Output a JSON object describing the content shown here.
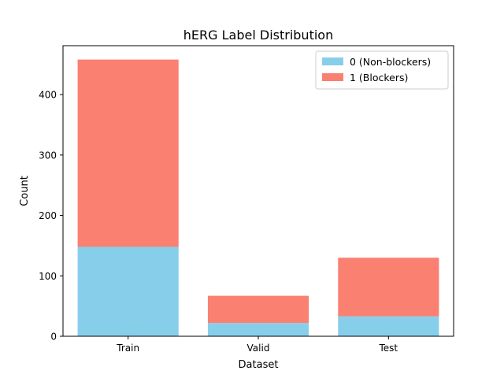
{
  "chart_data": {
    "type": "bar",
    "stacked": true,
    "title": "hERG Label Distribution",
    "xlabel": "Dataset",
    "ylabel": "Count",
    "categories": [
      "Train",
      "Valid",
      "Test"
    ],
    "series": [
      {
        "name": "0 (Non-blockers)",
        "values": [
          148,
          22,
          33
        ],
        "color": "#87ceeb"
      },
      {
        "name": "1 (Blockers)",
        "values": [
          310,
          45,
          97
        ],
        "color": "#fa8072"
      }
    ],
    "ylim": [
      0,
      481
    ],
    "yticks": [
      0,
      100,
      200,
      300,
      400
    ],
    "grid": false,
    "legend_position": "top-right"
  }
}
